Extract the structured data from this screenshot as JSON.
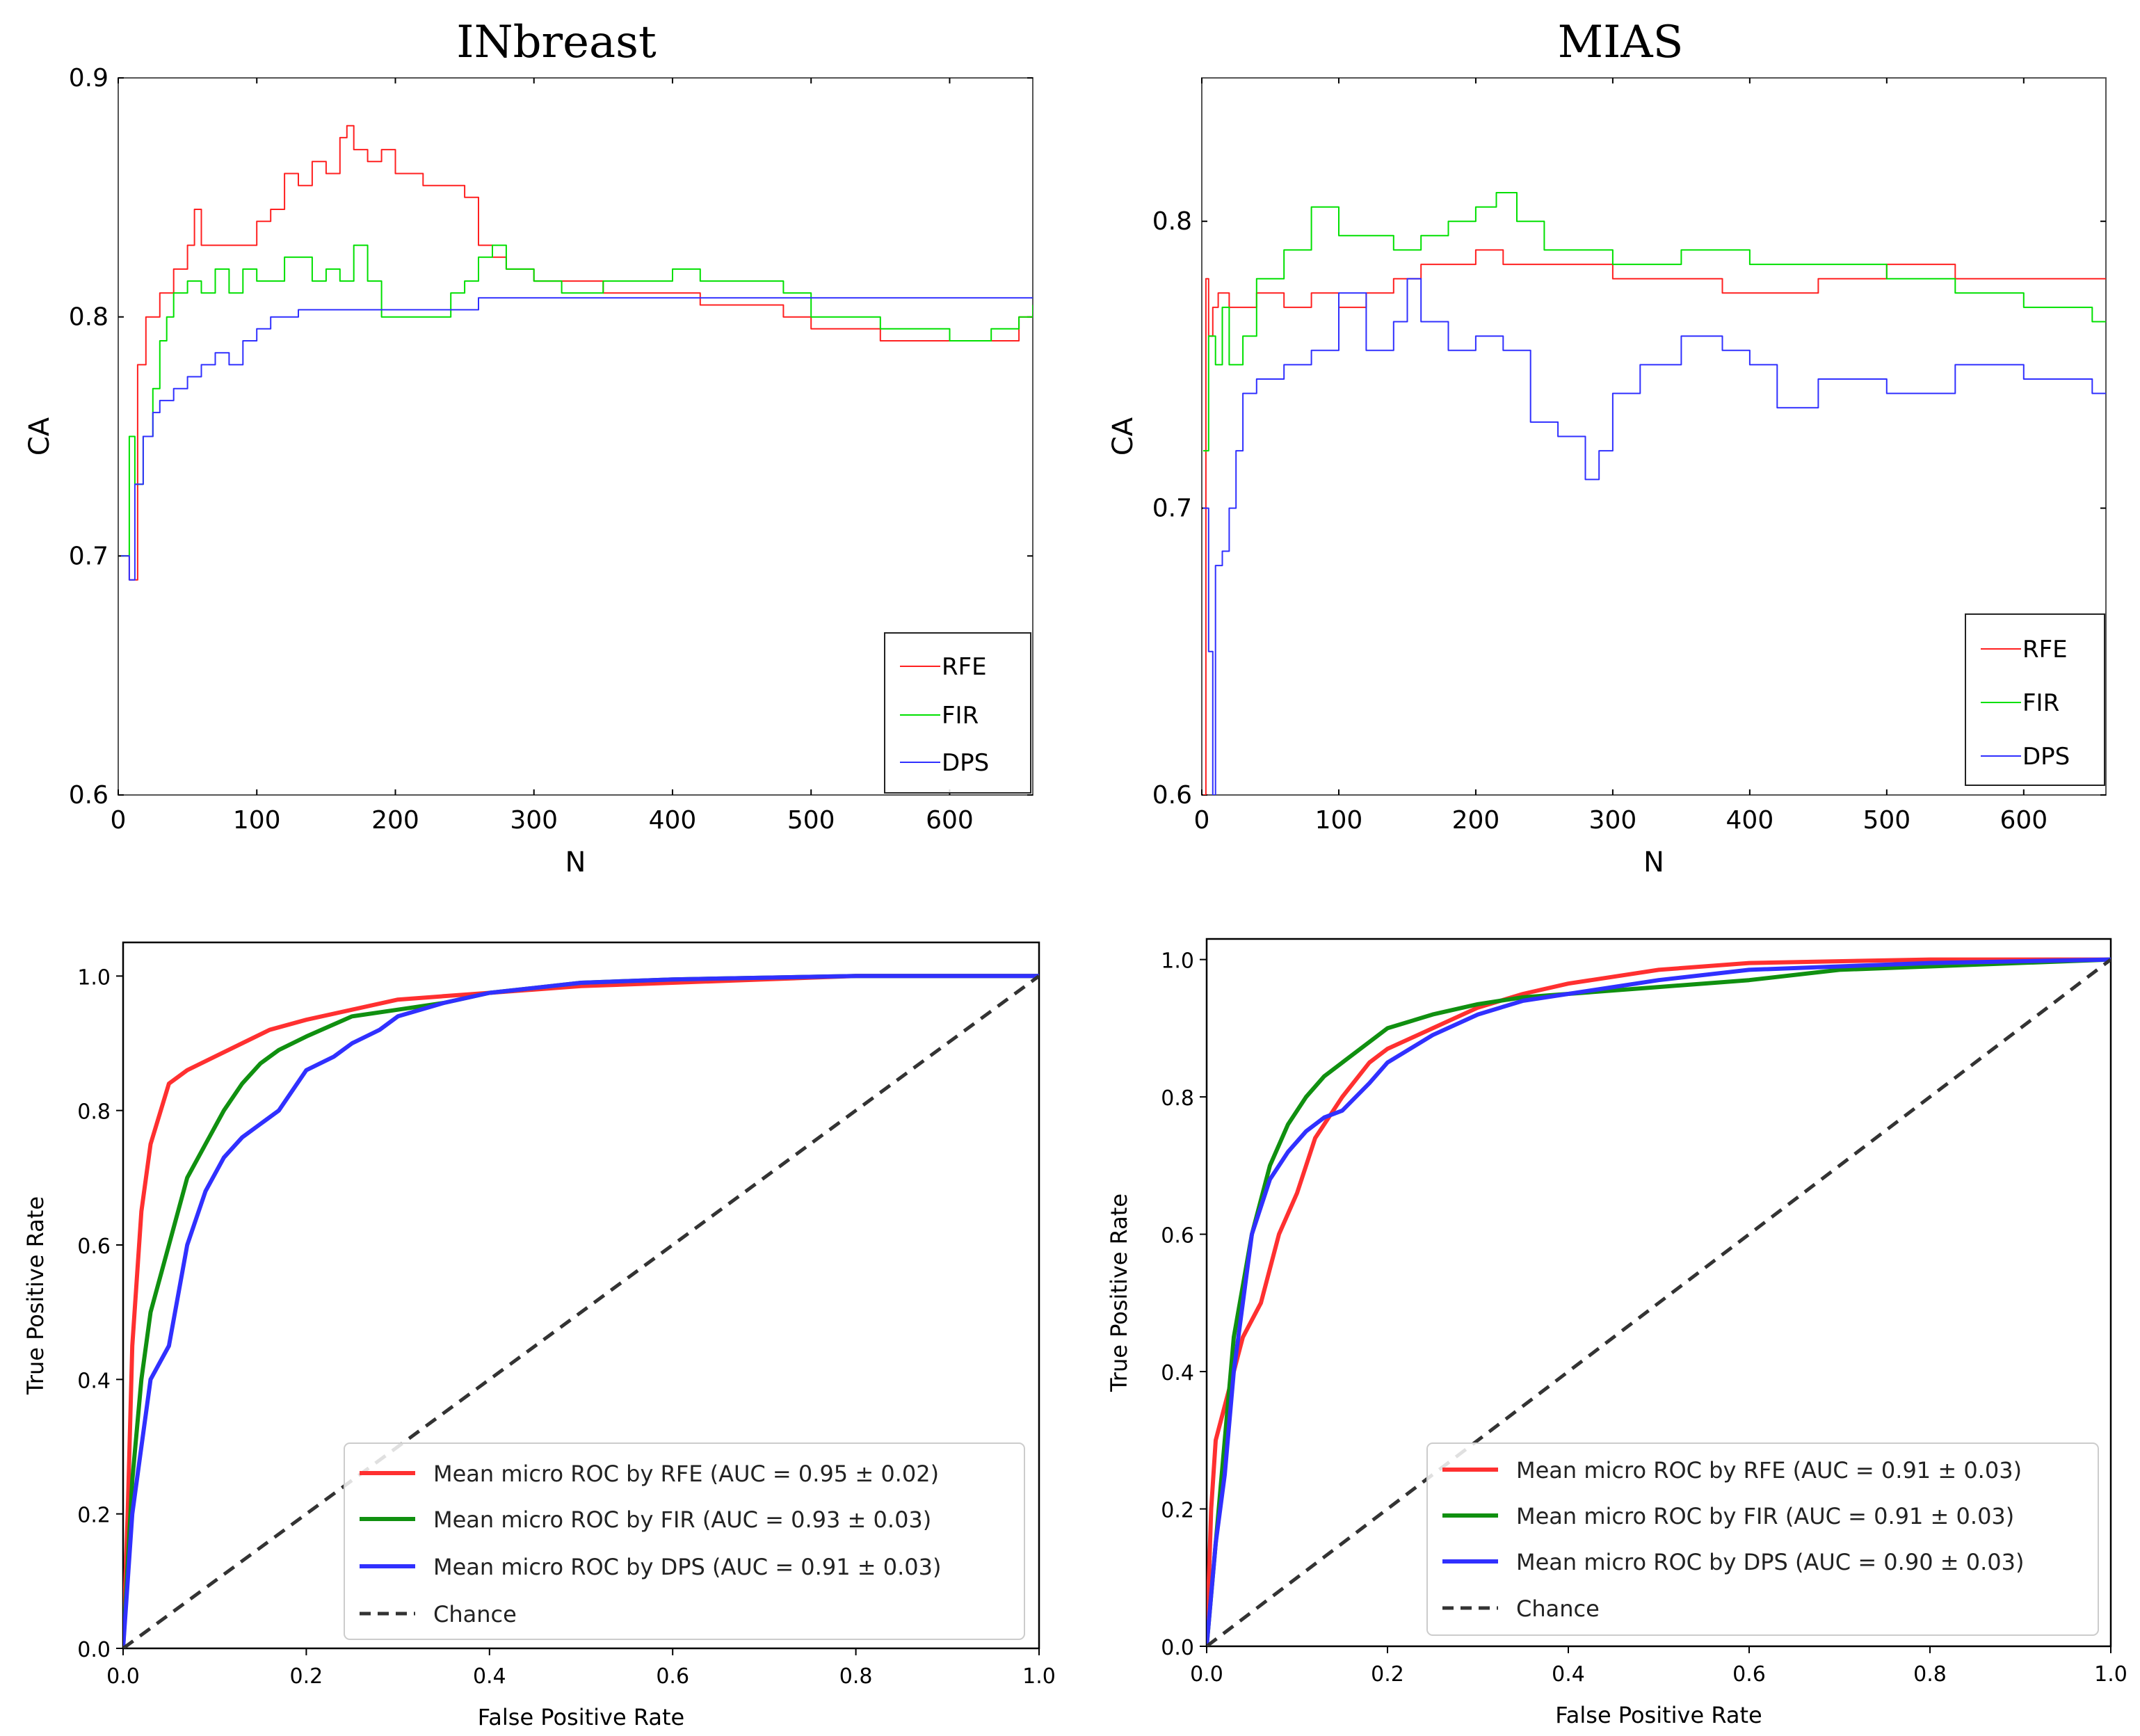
{
  "chart_data": [
    {
      "type": "line",
      "title": "INbreast",
      "xlabel": "N",
      "ylabel": "CA",
      "xlim": [
        0,
        660
      ],
      "ylim": [
        0.6,
        0.9
      ],
      "xticks": [
        "0",
        "100",
        "200",
        "300",
        "400",
        "500",
        "600"
      ],
      "yticks": [
        "0.6",
        "0.7",
        "0.8",
        "0.9"
      ],
      "legend_position": "bottom-right",
      "series": [
        {
          "name": "RFE",
          "color": "#ff2020",
          "x": [
            2,
            8,
            14,
            20,
            30,
            40,
            50,
            55,
            60,
            80,
            100,
            110,
            120,
            130,
            140,
            150,
            160,
            165,
            170,
            180,
            190,
            200,
            220,
            240,
            250,
            260,
            270,
            280,
            300,
            350,
            400,
            420,
            450,
            480,
            500,
            550,
            600,
            630,
            650,
            660
          ],
          "y": [
            0.7,
            0.69,
            0.78,
            0.8,
            0.81,
            0.82,
            0.83,
            0.845,
            0.83,
            0.83,
            0.84,
            0.845,
            0.86,
            0.855,
            0.865,
            0.86,
            0.875,
            0.88,
            0.87,
            0.865,
            0.87,
            0.86,
            0.855,
            0.855,
            0.85,
            0.83,
            0.825,
            0.82,
            0.815,
            0.81,
            0.81,
            0.805,
            0.805,
            0.8,
            0.795,
            0.79,
            0.79,
            0.79,
            0.8,
            0.8
          ]
        },
        {
          "name": "FIR",
          "color": "#00e000",
          "x": [
            2,
            8,
            12,
            18,
            25,
            30,
            35,
            40,
            50,
            60,
            70,
            80,
            90,
            100,
            120,
            140,
            150,
            160,
            170,
            180,
            190,
            200,
            220,
            240,
            250,
            260,
            270,
            280,
            300,
            320,
            350,
            400,
            420,
            450,
            480,
            500,
            550,
            600,
            630,
            650,
            660
          ],
          "y": [
            0.7,
            0.75,
            0.73,
            0.75,
            0.77,
            0.79,
            0.8,
            0.81,
            0.815,
            0.81,
            0.82,
            0.81,
            0.82,
            0.815,
            0.825,
            0.815,
            0.82,
            0.815,
            0.83,
            0.815,
            0.8,
            0.8,
            0.8,
            0.81,
            0.815,
            0.825,
            0.83,
            0.82,
            0.815,
            0.81,
            0.815,
            0.82,
            0.815,
            0.815,
            0.81,
            0.8,
            0.795,
            0.79,
            0.795,
            0.8,
            0.805
          ]
        },
        {
          "name": "DPS",
          "color": "#3030ff",
          "x": [
            2,
            8,
            12,
            18,
            25,
            30,
            40,
            50,
            60,
            70,
            80,
            90,
            100,
            110,
            120,
            130,
            150,
            200,
            250,
            260,
            300,
            400,
            500,
            600,
            660
          ],
          "y": [
            0.7,
            0.69,
            0.73,
            0.75,
            0.76,
            0.765,
            0.77,
            0.775,
            0.78,
            0.785,
            0.78,
            0.79,
            0.795,
            0.8,
            0.8,
            0.803,
            0.803,
            0.803,
            0.803,
            0.808,
            0.808,
            0.808,
            0.808,
            0.808,
            0.808
          ]
        }
      ]
    },
    {
      "type": "line",
      "title": "MIAS",
      "xlabel": "N",
      "ylabel": "CA",
      "xlim": [
        0,
        660
      ],
      "ylim": [
        0.6,
        0.85
      ],
      "xticks": [
        "0",
        "100",
        "200",
        "300",
        "400",
        "500",
        "600"
      ],
      "yticks": [
        "0.6",
        "0.7",
        "0.8"
      ],
      "legend_position": "bottom-right",
      "series": [
        {
          "name": "RFE",
          "color": "#ff2020",
          "x": [
            1,
            3,
            5,
            8,
            12,
            20,
            40,
            60,
            80,
            100,
            120,
            140,
            160,
            180,
            200,
            220,
            250,
            300,
            350,
            380,
            400,
            450,
            500,
            550,
            600,
            650,
            660
          ],
          "y": [
            0.6,
            0.78,
            0.76,
            0.77,
            0.775,
            0.77,
            0.775,
            0.77,
            0.775,
            0.77,
            0.775,
            0.78,
            0.785,
            0.785,
            0.79,
            0.785,
            0.785,
            0.78,
            0.78,
            0.775,
            0.775,
            0.78,
            0.785,
            0.78,
            0.78,
            0.78,
            0.78
          ]
        },
        {
          "name": "FIR",
          "color": "#00e000",
          "x": [
            1,
            5,
            10,
            15,
            20,
            30,
            40,
            60,
            80,
            100,
            120,
            140,
            160,
            180,
            200,
            215,
            230,
            250,
            300,
            350,
            400,
            450,
            500,
            550,
            600,
            650,
            660
          ],
          "y": [
            0.72,
            0.76,
            0.75,
            0.77,
            0.75,
            0.76,
            0.78,
            0.79,
            0.805,
            0.795,
            0.795,
            0.79,
            0.795,
            0.8,
            0.805,
            0.81,
            0.8,
            0.79,
            0.785,
            0.79,
            0.785,
            0.785,
            0.78,
            0.775,
            0.77,
            0.765,
            0.765
          ]
        },
        {
          "name": "DPS",
          "color": "#3030ff",
          "x": [
            1,
            5,
            8,
            10,
            15,
            20,
            25,
            30,
            40,
            60,
            80,
            100,
            120,
            140,
            150,
            160,
            180,
            200,
            220,
            240,
            260,
            280,
            290,
            300,
            320,
            350,
            380,
            400,
            420,
            450,
            500,
            550,
            600,
            650,
            660
          ],
          "y": [
            0.7,
            0.65,
            0.6,
            0.68,
            0.685,
            0.7,
            0.72,
            0.74,
            0.745,
            0.75,
            0.755,
            0.775,
            0.755,
            0.765,
            0.78,
            0.765,
            0.755,
            0.76,
            0.755,
            0.73,
            0.725,
            0.71,
            0.72,
            0.74,
            0.75,
            0.76,
            0.755,
            0.75,
            0.735,
            0.745,
            0.74,
            0.75,
            0.745,
            0.74,
            0.74
          ]
        }
      ]
    },
    {
      "type": "line",
      "title": "",
      "xlabel": "False Positive Rate",
      "ylabel": "True Positive Rate",
      "xlim": [
        0,
        1
      ],
      "ylim": [
        0,
        1.05
      ],
      "xticks": [
        "0.0",
        "0.2",
        "0.4",
        "0.6",
        "0.8",
        "1.0"
      ],
      "yticks": [
        "0.0",
        "0.2",
        "0.4",
        "0.6",
        "0.8",
        "1.0"
      ],
      "legend_position": "bottom-right",
      "series": [
        {
          "name": "Mean micro ROC by RFE (AUC = 0.95 ± 0.02)",
          "color": "#ff3030",
          "x": [
            0,
            0.005,
            0.01,
            0.02,
            0.03,
            0.05,
            0.07,
            0.1,
            0.13,
            0.16,
            0.2,
            0.25,
            0.3,
            0.35,
            0.4,
            0.5,
            0.6,
            0.8,
            1.0
          ],
          "y": [
            0,
            0.2,
            0.45,
            0.65,
            0.75,
            0.84,
            0.86,
            0.88,
            0.9,
            0.92,
            0.935,
            0.95,
            0.965,
            0.97,
            0.975,
            0.985,
            0.99,
            1.0,
            1.0
          ]
        },
        {
          "name": "Mean micro ROC by FIR (AUC = 0.93 ± 0.03)",
          "color": "#109010",
          "x": [
            0,
            0.01,
            0.02,
            0.03,
            0.05,
            0.07,
            0.09,
            0.11,
            0.13,
            0.15,
            0.17,
            0.2,
            0.25,
            0.3,
            0.35,
            0.4,
            0.5,
            0.6,
            0.8,
            1.0
          ],
          "y": [
            0,
            0.25,
            0.4,
            0.5,
            0.6,
            0.7,
            0.75,
            0.8,
            0.84,
            0.87,
            0.89,
            0.91,
            0.94,
            0.95,
            0.96,
            0.975,
            0.99,
            0.995,
            1.0,
            1.0
          ]
        },
        {
          "name": "Mean micro ROC by DPS (AUC = 0.91 ± 0.03)",
          "color": "#3030ff",
          "x": [
            0,
            0.01,
            0.02,
            0.03,
            0.05,
            0.07,
            0.09,
            0.11,
            0.13,
            0.15,
            0.17,
            0.2,
            0.23,
            0.25,
            0.28,
            0.3,
            0.35,
            0.4,
            0.5,
            0.6,
            0.8,
            1.0
          ],
          "y": [
            0,
            0.2,
            0.3,
            0.4,
            0.45,
            0.6,
            0.68,
            0.73,
            0.76,
            0.78,
            0.8,
            0.86,
            0.88,
            0.9,
            0.92,
            0.94,
            0.96,
            0.975,
            0.99,
            0.995,
            1.0,
            1.0
          ]
        },
        {
          "name": "Chance",
          "color": "#333333",
          "dashed": true,
          "x": [
            0,
            1
          ],
          "y": [
            0,
            1
          ]
        }
      ]
    },
    {
      "type": "line",
      "title": "",
      "xlabel": "False Positive Rate",
      "ylabel": "True Positive Rate",
      "xlim": [
        0,
        1
      ],
      "ylim": [
        0,
        1.03
      ],
      "xticks": [
        "0.0",
        "0.2",
        "0.4",
        "0.6",
        "0.8",
        "1.0"
      ],
      "yticks": [
        "0.0",
        "0.2",
        "0.4",
        "0.6",
        "0.8",
        "1.0"
      ],
      "legend_position": "bottom-right",
      "series": [
        {
          "name": "Mean micro ROC by RFE (AUC = 0.91 ± 0.03)",
          "color": "#ff3030",
          "x": [
            0,
            0.005,
            0.01,
            0.02,
            0.04,
            0.06,
            0.08,
            0.1,
            0.12,
            0.15,
            0.18,
            0.2,
            0.25,
            0.3,
            0.35,
            0.4,
            0.5,
            0.6,
            0.8,
            1.0
          ],
          "y": [
            0,
            0.2,
            0.3,
            0.35,
            0.45,
            0.5,
            0.6,
            0.66,
            0.74,
            0.8,
            0.85,
            0.87,
            0.9,
            0.93,
            0.95,
            0.965,
            0.985,
            0.995,
            1.0,
            1.0
          ]
        },
        {
          "name": "Mean micro ROC by FIR (AUC = 0.91 ± 0.03)",
          "color": "#109010",
          "x": [
            0,
            0.01,
            0.02,
            0.03,
            0.05,
            0.07,
            0.09,
            0.11,
            0.13,
            0.15,
            0.18,
            0.2,
            0.25,
            0.3,
            0.35,
            0.4,
            0.5,
            0.6,
            0.7,
            0.8,
            1.0
          ],
          "y": [
            0,
            0.15,
            0.3,
            0.45,
            0.6,
            0.7,
            0.76,
            0.8,
            0.83,
            0.85,
            0.88,
            0.9,
            0.92,
            0.935,
            0.945,
            0.95,
            0.96,
            0.97,
            0.985,
            0.99,
            1.0
          ]
        },
        {
          "name": "Mean micro ROC by DPS (AUC = 0.90 ± 0.03)",
          "color": "#3030ff",
          "x": [
            0,
            0.01,
            0.02,
            0.03,
            0.05,
            0.07,
            0.09,
            0.11,
            0.13,
            0.15,
            0.18,
            0.2,
            0.25,
            0.3,
            0.35,
            0.4,
            0.5,
            0.6,
            0.8,
            1.0
          ],
          "y": [
            0,
            0.15,
            0.25,
            0.4,
            0.6,
            0.68,
            0.72,
            0.75,
            0.77,
            0.78,
            0.82,
            0.85,
            0.89,
            0.92,
            0.94,
            0.95,
            0.97,
            0.985,
            0.995,
            1.0
          ]
        },
        {
          "name": "Chance",
          "color": "#333333",
          "dashed": true,
          "x": [
            0,
            1
          ],
          "y": [
            0,
            1
          ]
        }
      ]
    }
  ]
}
